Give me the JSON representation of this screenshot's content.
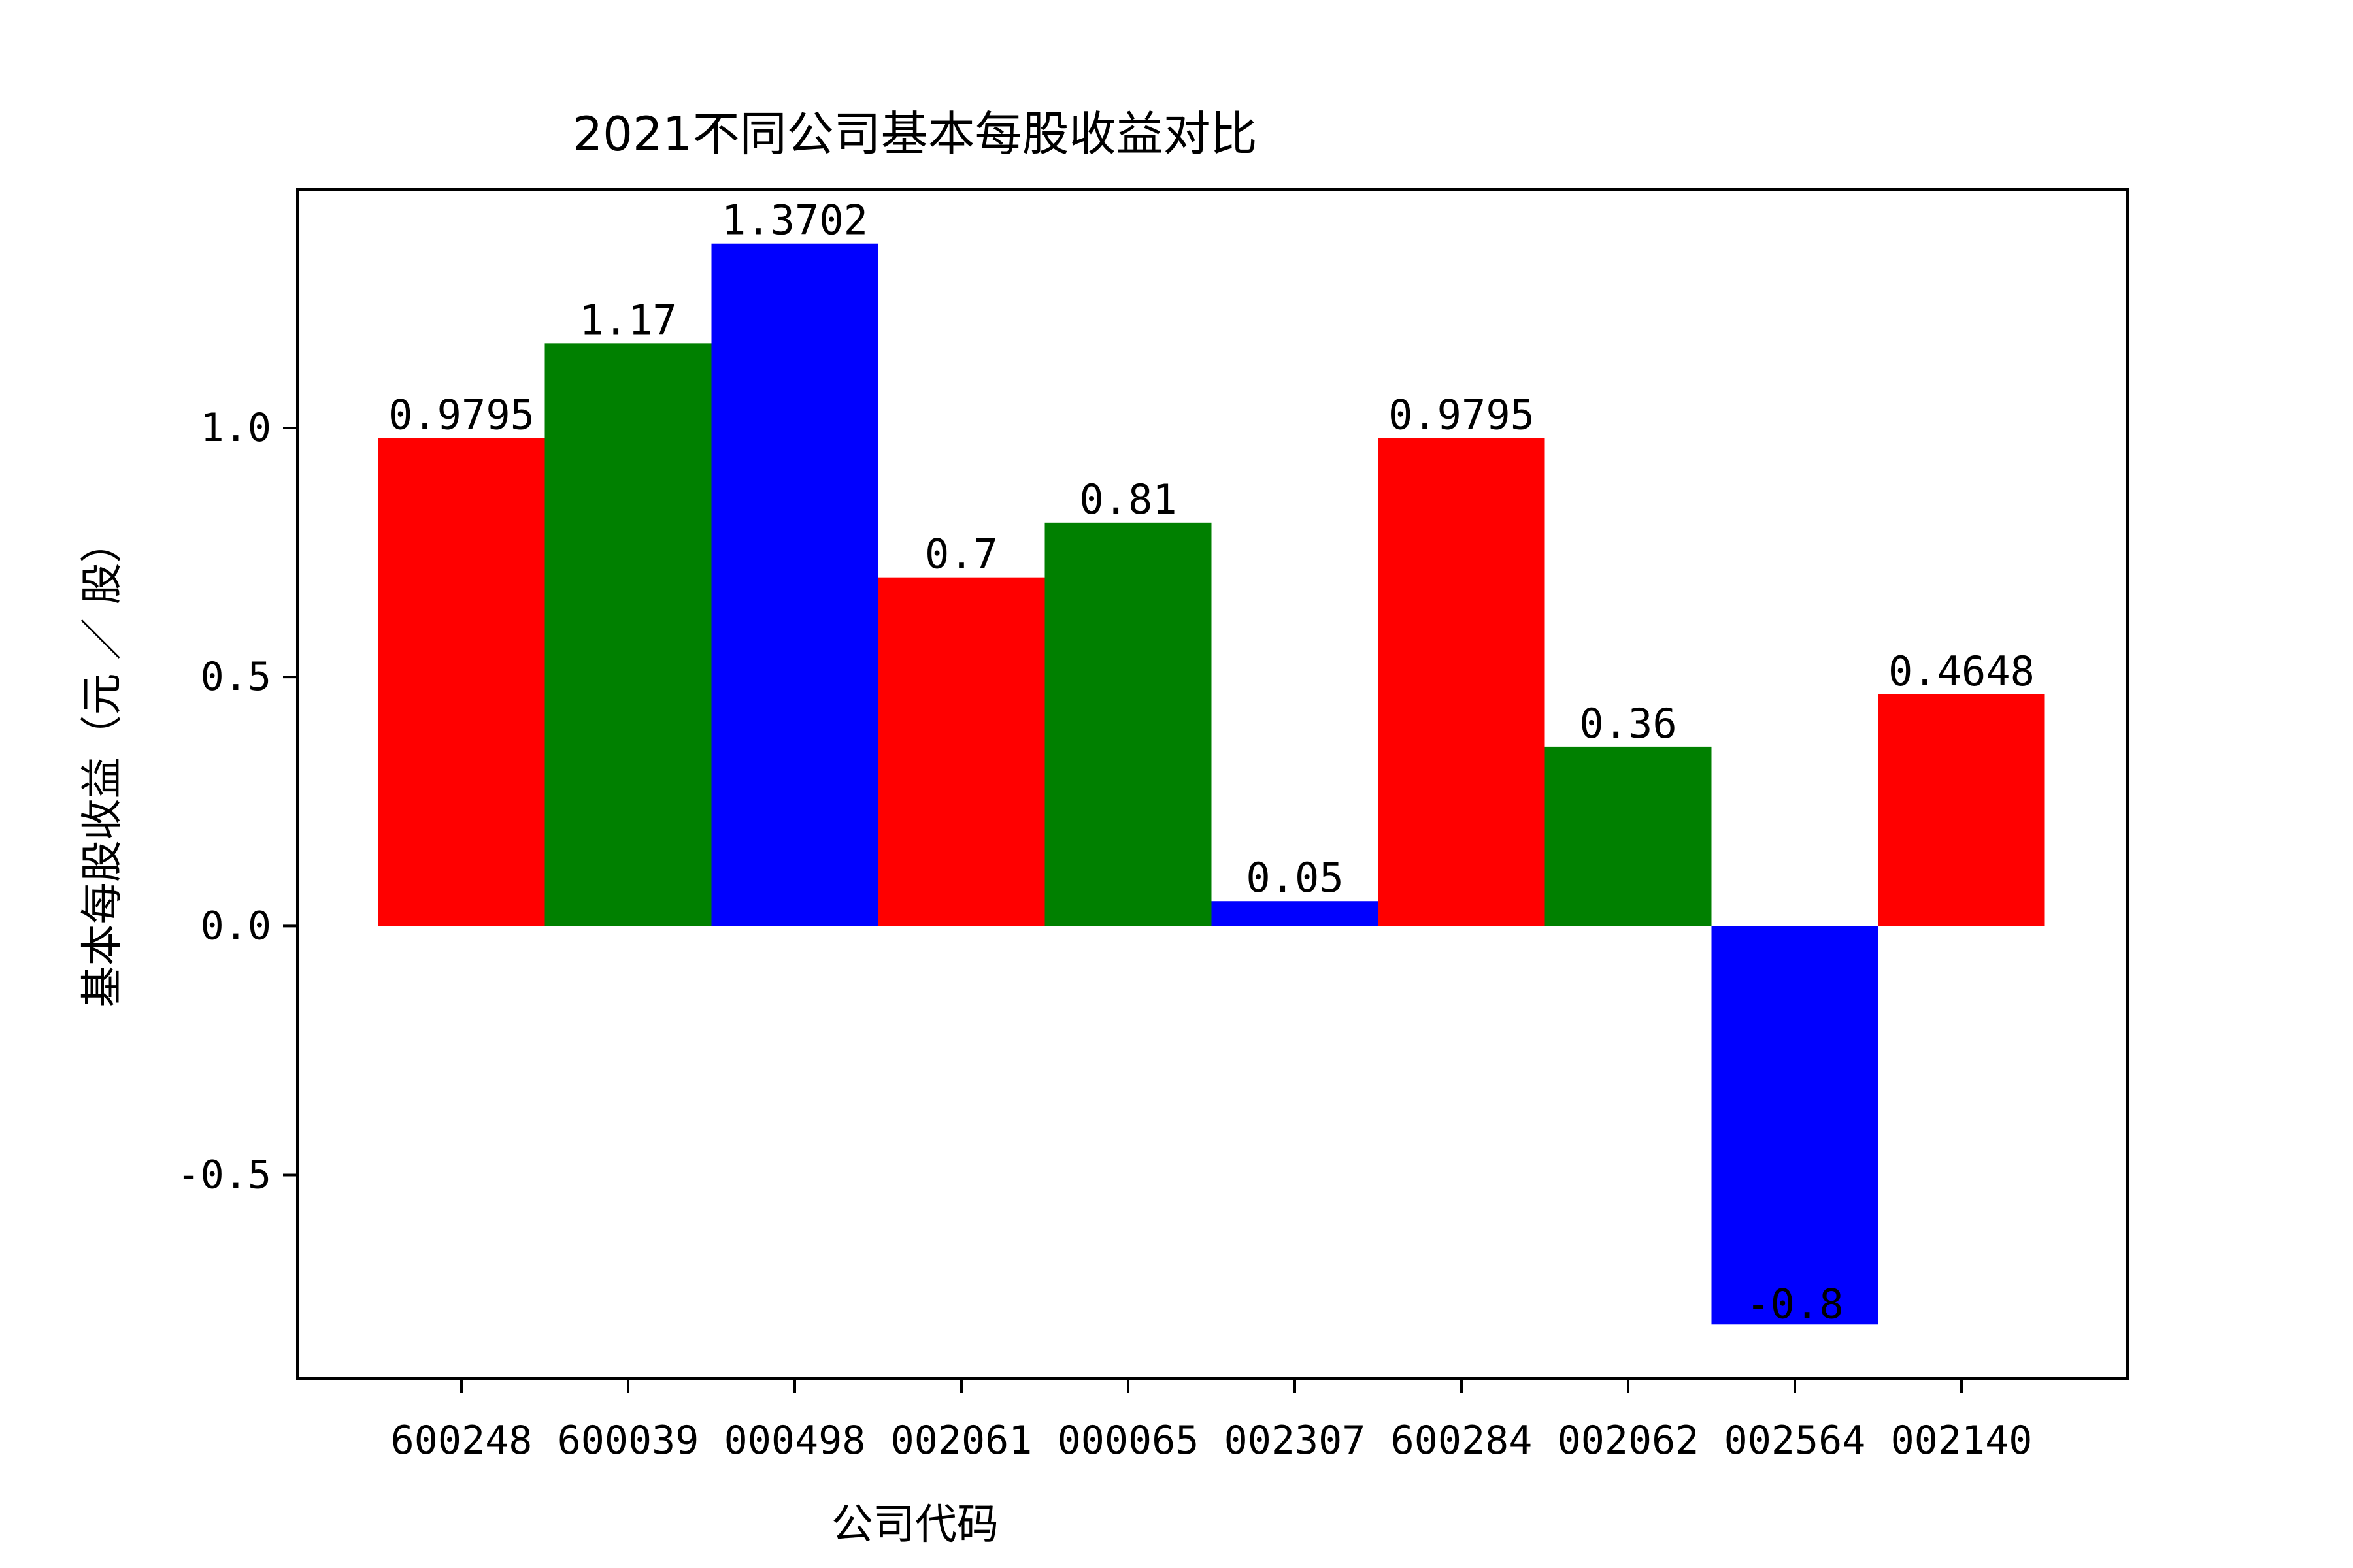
{
  "chart_data": {
    "type": "bar",
    "title": "2021不同公司基本每股收益对比",
    "xlabel": "公司代码",
    "ylabel": "基本每股收益（元 ／ 股）",
    "categories": [
      "600248",
      "600039",
      "000498",
      "002061",
      "000065",
      "002307",
      "600284",
      "002062",
      "002564",
      "002140"
    ],
    "values": [
      0.9795,
      1.17,
      1.3702,
      0.7,
      0.81,
      0.05,
      0.9795,
      0.36,
      -0.8,
      0.4648
    ],
    "value_labels": [
      "0.9795",
      "1.17",
      "1.3702",
      "0.7",
      "0.81",
      "0.05",
      "0.9795",
      "0.36",
      "-0.8",
      "0.4648"
    ],
    "colors": [
      "#ff0000",
      "#008000",
      "#0000ff",
      "#ff0000",
      "#008000",
      "#0000ff",
      "#ff0000",
      "#008000",
      "#0000ff",
      "#ff0000"
    ],
    "yticks": [
      -0.5,
      0.0,
      0.5,
      1.0
    ],
    "ytick_labels": [
      "-0.5",
      "0.0",
      "0.5",
      "1.0"
    ],
    "ylim": [
      -0.9085,
      1.4787
    ],
    "grid": false,
    "legend": "none"
  }
}
